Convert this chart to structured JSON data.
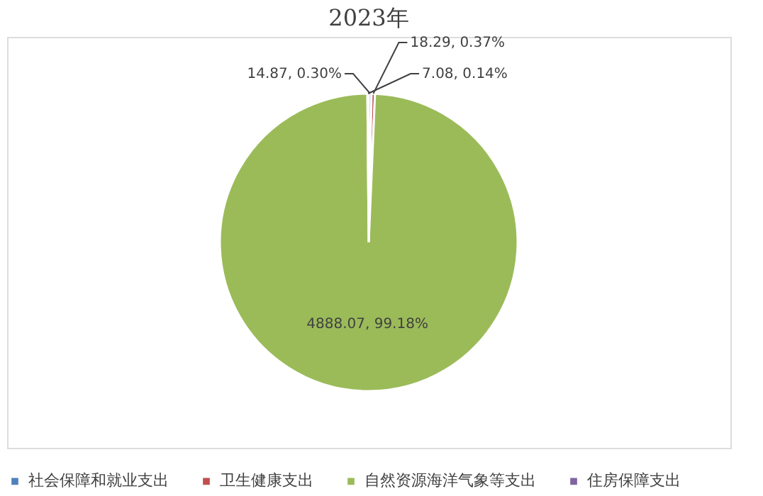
{
  "chart_data": {
    "type": "pie",
    "title": "2023年",
    "categories": [
      "社会保障和就业支出",
      "卫生健康支出",
      "自然资源海洋气象等支出",
      "住房保障支出"
    ],
    "values": [
      14.87,
      18.29,
      4888.07,
      7.08
    ],
    "colors": [
      "#4f81bd",
      "#c0504d",
      "#9bbb59",
      "#8064a2"
    ],
    "value_labels": [
      "14.87, 0.30%",
      "18.29, 0.37%",
      "4888.07, 99.18%",
      "7.08, 0.14%"
    ],
    "legend": "bottom"
  }
}
